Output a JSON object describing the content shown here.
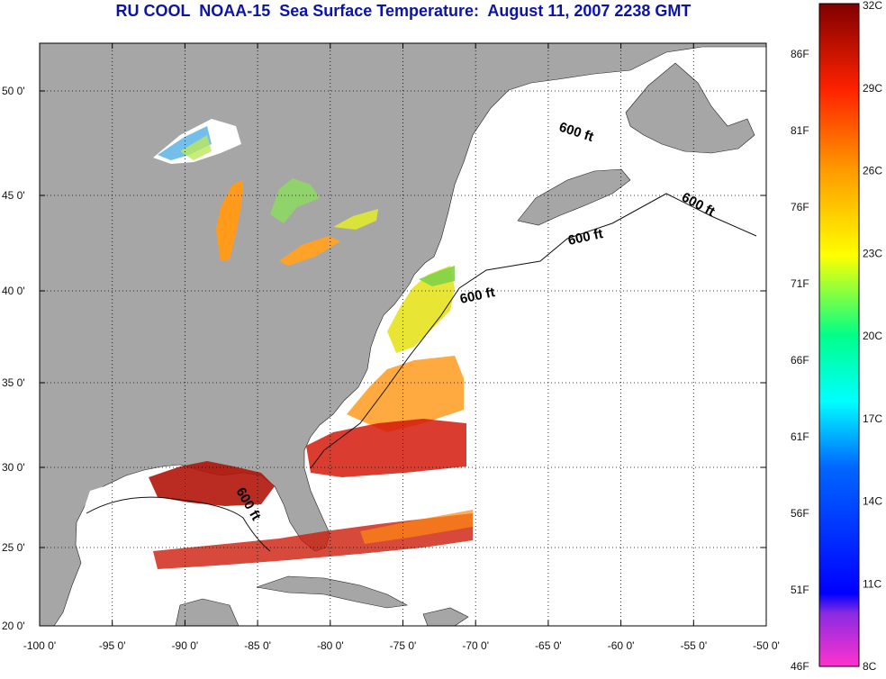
{
  "title": "RU COOL  NOAA-15  Sea Surface Temperature:  August 11, 2007 2238 GMT",
  "axes": {
    "lon_ticks": [
      "-100 0'",
      "-95 0'",
      "-90 0'",
      "-85 0'",
      "-80 0'",
      "-75 0'",
      "-70 0'",
      "-65 0'",
      "-60 0'",
      "-55 0'",
      "-50 0'"
    ],
    "lat_ticks": [
      "50 0'",
      "45 0'",
      "40 0'",
      "35 0'",
      "30 0'",
      "25 0'",
      "20 0'"
    ]
  },
  "isobath_labels": [
    "600 ft",
    "600 ft",
    "600 ft",
    "600 ft",
    "600 ft"
  ],
  "colorbar": {
    "celsius": [
      "32C",
      "29C",
      "26C",
      "23C",
      "20C",
      "17C",
      "14C",
      "11C",
      "8C"
    ],
    "fahrenheit": [
      "86F",
      "81F",
      "76F",
      "71F",
      "66F",
      "61F",
      "56F",
      "51F",
      "46F"
    ],
    "colors": [
      "#ff33cc",
      "#0000ff",
      "#00ffff",
      "#ffff00",
      "#ff7700",
      "#ff0000",
      "#800000"
    ]
  },
  "colors": {
    "title": "#0c14a8",
    "land": "#a6a6a6",
    "ocean": "#ffffff"
  }
}
